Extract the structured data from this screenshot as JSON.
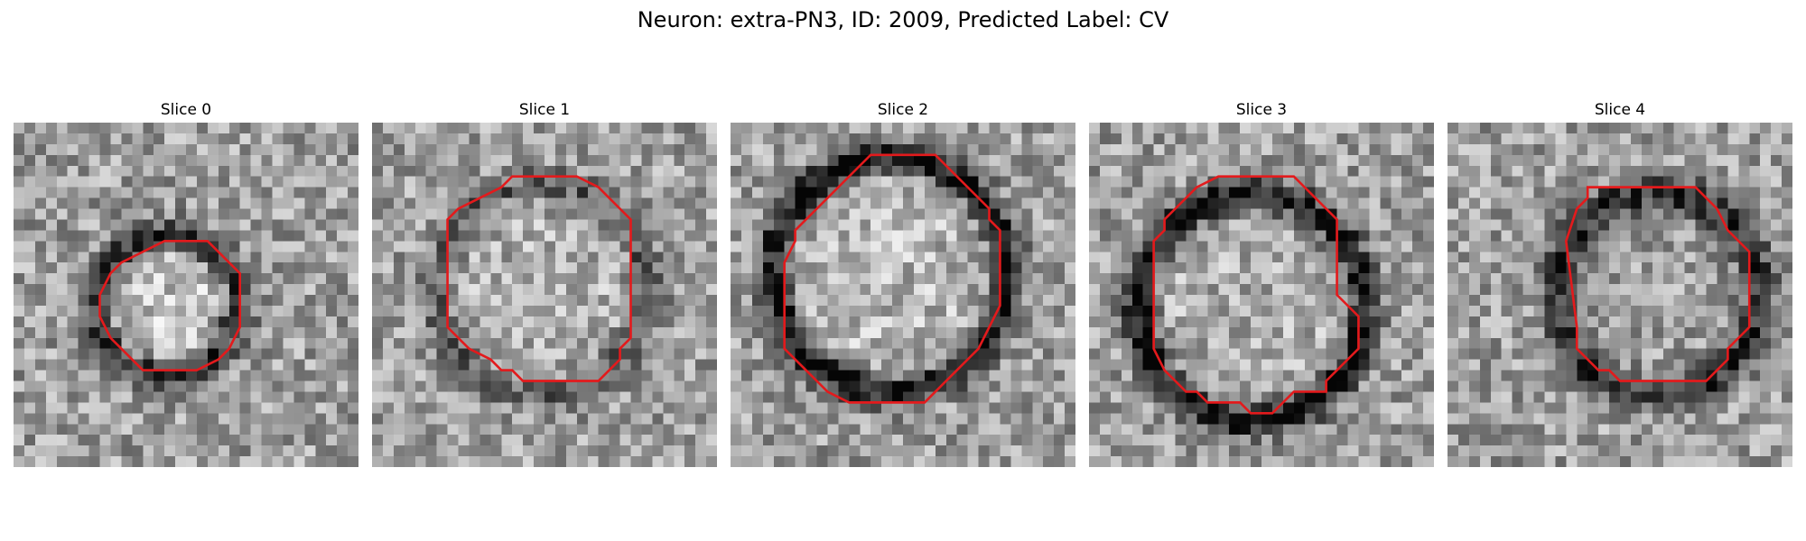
{
  "figure": {
    "title": "Neuron: extra-PN3, ID: 2009, Predicted Label: CV"
  },
  "panels": [
    {
      "title": "Slice 0",
      "ring_darkness": 0.4,
      "center_brightness": 0.28,
      "outline_color": "#e31a1c"
    },
    {
      "title": "Slice 1",
      "ring_darkness": 0.25,
      "center_brightness": 0.12,
      "outline_color": "#e31a1c"
    },
    {
      "title": "Slice 2",
      "ring_darkness": 0.55,
      "center_brightness": 0.18,
      "outline_color": "#e31a1c"
    },
    {
      "title": "Slice 3",
      "ring_darkness": 0.55,
      "center_brightness": 0.12,
      "outline_color": "#e31a1c"
    },
    {
      "title": "Slice 4",
      "ring_darkness": 0.45,
      "center_brightness": 0.0,
      "outline_color": "#e31a1c"
    }
  ]
}
